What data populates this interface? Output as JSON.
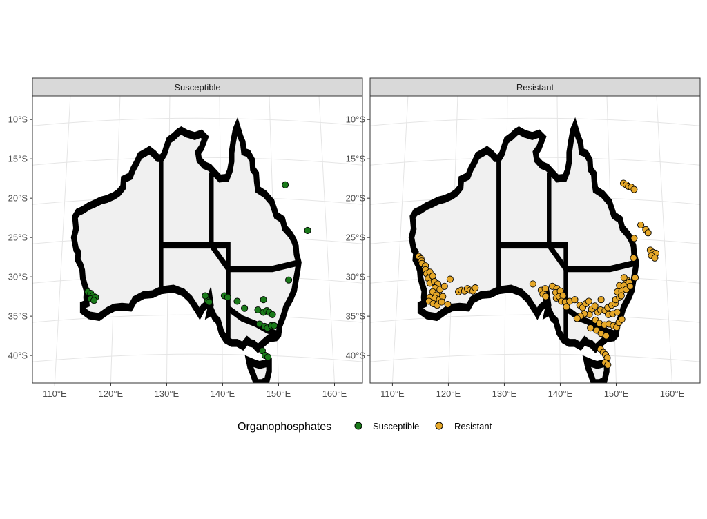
{
  "panels": [
    {
      "strip": "Susceptible",
      "fill": "#1a7a1a",
      "points": [
        [
          115.9,
          -31.9
        ],
        [
          116.4,
          -32.1
        ],
        [
          116.8,
          -32.4
        ],
        [
          117.3,
          -32.6
        ],
        [
          116.4,
          -32.8
        ],
        [
          117.0,
          -33.0
        ],
        [
          137.3,
          -33.0
        ],
        [
          136.9,
          -32.4
        ],
        [
          137.6,
          -33.2
        ],
        [
          140.3,
          -32.4
        ],
        [
          140.9,
          -32.6
        ],
        [
          142.6,
          -33.1
        ],
        [
          143.9,
          -34.0
        ],
        [
          147.3,
          -32.9
        ],
        [
          151.8,
          -30.4
        ],
        [
          146.3,
          -34.2
        ],
        [
          147.3,
          -34.5
        ],
        [
          147.9,
          -34.3
        ],
        [
          148.3,
          -34.5
        ],
        [
          148.9,
          -34.8
        ],
        [
          146.6,
          -36.0
        ],
        [
          147.5,
          -36.3
        ],
        [
          148.0,
          -36.5
        ],
        [
          148.7,
          -36.2
        ],
        [
          149.2,
          -36.2
        ],
        [
          147.1,
          -39.4
        ],
        [
          147.6,
          -40.0
        ],
        [
          148.1,
          -40.2
        ],
        [
          151.2,
          -18.3
        ],
        [
          155.2,
          -24.1
        ]
      ]
    },
    {
      "strip": "Resistant",
      "fill": "#e6a829",
      "points": [
        [
          114.7,
          -27.4
        ],
        [
          115.1,
          -27.7
        ],
        [
          115.2,
          -28.0
        ],
        [
          115.3,
          -28.3
        ],
        [
          115.9,
          -28.6
        ],
        [
          115.9,
          -29.1
        ],
        [
          116.1,
          -29.6
        ],
        [
          116.7,
          -29.4
        ],
        [
          116.4,
          -30.2
        ],
        [
          117.2,
          -29.9
        ],
        [
          116.7,
          -30.8
        ],
        [
          117.5,
          -30.6
        ],
        [
          118.1,
          -30.9
        ],
        [
          117.6,
          -31.4
        ],
        [
          118.5,
          -31.6
        ],
        [
          117.2,
          -31.9
        ],
        [
          117.9,
          -32.3
        ],
        [
          116.7,
          -32.6
        ],
        [
          117.6,
          -32.7
        ],
        [
          118.4,
          -32.9
        ],
        [
          119.0,
          -32.5
        ],
        [
          119.3,
          -31.2
        ],
        [
          116.5,
          -33.1
        ],
        [
          117.3,
          -33.4
        ],
        [
          118.0,
          -33.6
        ],
        [
          118.8,
          -33.2
        ],
        [
          119.9,
          -33.5
        ],
        [
          120.3,
          -30.3
        ],
        [
          121.8,
          -31.9
        ],
        [
          122.3,
          -31.7
        ],
        [
          122.9,
          -31.8
        ],
        [
          123.4,
          -31.5
        ],
        [
          123.9,
          -31.7
        ],
        [
          124.4,
          -31.8
        ],
        [
          124.8,
          -31.4
        ],
        [
          135.1,
          -30.9
        ],
        [
          136.6,
          -31.7
        ],
        [
          137.3,
          -31.5
        ],
        [
          136.9,
          -32.2
        ],
        [
          137.4,
          -32.5
        ],
        [
          138.6,
          -31.2
        ],
        [
          139.4,
          -31.5
        ],
        [
          139.2,
          -32.0
        ],
        [
          140.0,
          -31.8
        ],
        [
          139.3,
          -32.7
        ],
        [
          139.8,
          -32.5
        ],
        [
          140.5,
          -32.4
        ],
        [
          140.2,
          -33.1
        ],
        [
          140.9,
          -33.2
        ],
        [
          141.7,
          -33.1
        ],
        [
          141.1,
          -33.8
        ],
        [
          142.6,
          -32.9
        ],
        [
          143.5,
          -33.6
        ],
        [
          144.0,
          -33.9
        ],
        [
          144.6,
          -33.4
        ],
        [
          145.1,
          -33.1
        ],
        [
          145.6,
          -34.1
        ],
        [
          146.2,
          -33.7
        ],
        [
          147.3,
          -32.9
        ],
        [
          145.2,
          -34.8
        ],
        [
          144.3,
          -34.7
        ],
        [
          143.6,
          -35.0
        ],
        [
          143.0,
          -35.3
        ],
        [
          146.7,
          -34.5
        ],
        [
          147.2,
          -34.2
        ],
        [
          148.0,
          -34.3
        ],
        [
          148.5,
          -33.9
        ],
        [
          149.2,
          -33.6
        ],
        [
          149.8,
          -33.4
        ],
        [
          148.6,
          -34.8
        ],
        [
          149.4,
          -34.7
        ],
        [
          150.2,
          -34.5
        ],
        [
          149.9,
          -32.9
        ],
        [
          150.6,
          -32.6
        ],
        [
          150.2,
          -31.9
        ],
        [
          151.0,
          -31.8
        ],
        [
          150.6,
          -31.1
        ],
        [
          151.4,
          -31.1
        ],
        [
          151.9,
          -30.4
        ],
        [
          151.4,
          -30.1
        ],
        [
          152.3,
          -30.7
        ],
        [
          150.9,
          -32.4
        ],
        [
          151.8,
          -31.6
        ],
        [
          152.5,
          -31.2
        ],
        [
          146.3,
          -35.5
        ],
        [
          147.0,
          -35.9
        ],
        [
          147.9,
          -36.1
        ],
        [
          148.7,
          -36.0
        ],
        [
          149.5,
          -36.2
        ],
        [
          150.1,
          -36.4
        ],
        [
          150.5,
          -35.8
        ],
        [
          151.0,
          -35.4
        ],
        [
          145.4,
          -36.5
        ],
        [
          146.5,
          -36.8
        ],
        [
          147.3,
          -37.2
        ],
        [
          148.2,
          -37.5
        ],
        [
          147.2,
          -39.2
        ],
        [
          147.7,
          -39.6
        ],
        [
          148.1,
          -39.9
        ],
        [
          148.4,
          -40.3
        ],
        [
          148.0,
          -40.9
        ],
        [
          148.5,
          -41.2
        ],
        [
          151.3,
          -18.1
        ],
        [
          151.8,
          -18.3
        ],
        [
          152.2,
          -18.5
        ],
        [
          152.7,
          -18.6
        ],
        [
          153.2,
          -18.9
        ],
        [
          154.4,
          -23.4
        ],
        [
          155.3,
          -24.0
        ],
        [
          155.7,
          -24.4
        ],
        [
          153.2,
          -25.1
        ],
        [
          156.1,
          -26.6
        ],
        [
          156.6,
          -26.9
        ],
        [
          157.1,
          -27.0
        ],
        [
          156.3,
          -27.3
        ],
        [
          156.9,
          -27.6
        ],
        [
          153.1,
          -27.6
        ],
        [
          153.4,
          -30.1
        ]
      ]
    }
  ],
  "axes": {
    "x_ticks": [
      {
        "value": 110,
        "label": "110°E"
      },
      {
        "value": 120,
        "label": "120°E"
      },
      {
        "value": 130,
        "label": "130°E"
      },
      {
        "value": 140,
        "label": "140°E"
      },
      {
        "value": 150,
        "label": "150°E"
      },
      {
        "value": 160,
        "label": "160°E"
      }
    ],
    "y_ticks": [
      {
        "value": -10,
        "label": "10°S"
      },
      {
        "value": -15,
        "label": "15°S"
      },
      {
        "value": -20,
        "label": "20°S"
      },
      {
        "value": -25,
        "label": "25°S"
      },
      {
        "value": -30,
        "label": "30°S"
      },
      {
        "value": -35,
        "label": "35°S"
      },
      {
        "value": -40,
        "label": "40°S"
      }
    ]
  },
  "legend": {
    "title": "Organophosphates",
    "items": [
      {
        "label": "Susceptible",
        "color": "#1a7a1a"
      },
      {
        "label": "Resistant",
        "color": "#e6a829"
      }
    ]
  },
  "colors": {
    "land": "#f0f0f0",
    "strip": "#d9d9d9",
    "grid": "#e5e5e5"
  },
  "chart_data": {
    "type": "scatter",
    "facets": [
      "Susceptible",
      "Resistant"
    ],
    "xlabel": "",
    "ylabel": "",
    "xlim": [
      106,
      165
    ],
    "ylim": [
      -43.5,
      -7
    ]
  }
}
